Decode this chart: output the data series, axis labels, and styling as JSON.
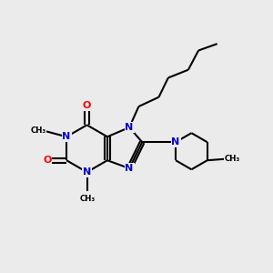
{
  "bg_color": "#ebebeb",
  "bond_color": "#000000",
  "N_color": "#0000cd",
  "O_color": "#ff0000",
  "line_width": 1.5,
  "figsize": [
    3.0,
    3.0
  ],
  "dpi": 100,
  "xlim": [
    0,
    10
  ],
  "ylim": [
    0,
    10
  ]
}
